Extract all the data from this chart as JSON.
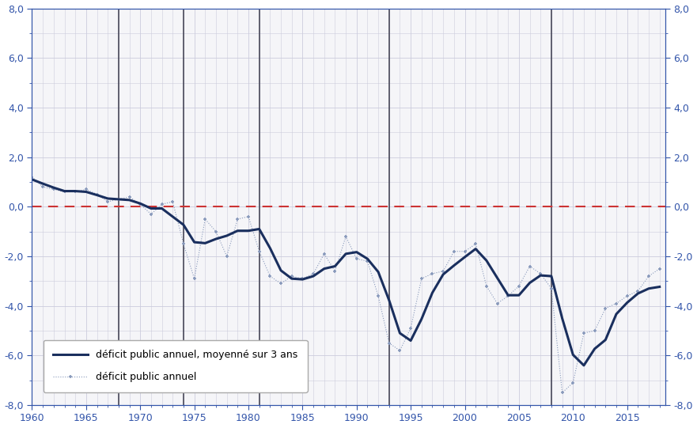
{
  "background_color": "#ffffff",
  "plot_bg_color": "#f5f5f8",
  "grid_color": "#ccccdd",
  "xlim": [
    1960,
    2018.5
  ],
  "ylim": [
    -8.0,
    8.0
  ],
  "yticks": [
    -8.0,
    -6.0,
    -4.0,
    -2.0,
    0.0,
    2.0,
    4.0,
    6.0,
    8.0
  ],
  "xticks": [
    1960,
    1965,
    1970,
    1975,
    1980,
    1985,
    1990,
    1995,
    2000,
    2005,
    2010,
    2015
  ],
  "vertical_lines": [
    1968,
    1974,
    1981,
    1993,
    2008
  ],
  "vline_color": "#444455",
  "zero_line_color": "#cc3333",
  "tick_color": "#3355aa",
  "annual_data": {
    "years": [
      1960,
      1961,
      1962,
      1963,
      1964,
      1965,
      1966,
      1967,
      1968,
      1969,
      1970,
      1971,
      1972,
      1973,
      1974,
      1975,
      1976,
      1977,
      1978,
      1979,
      1980,
      1981,
      1982,
      1983,
      1984,
      1985,
      1986,
      1987,
      1988,
      1989,
      1990,
      1991,
      1992,
      1993,
      1994,
      1995,
      1996,
      1997,
      1998,
      1999,
      2000,
      2001,
      2002,
      2003,
      2004,
      2005,
      2006,
      2007,
      2008,
      2009,
      2010,
      2011,
      2012,
      2013,
      2014,
      2015,
      2016,
      2017,
      2018
    ],
    "values": [
      1.2,
      0.8,
      0.7,
      0.6,
      0.6,
      0.7,
      0.5,
      0.2,
      0.3,
      0.4,
      0.1,
      -0.3,
      0.1,
      0.2,
      -1.5,
      -2.9,
      -0.5,
      -1.0,
      -2.0,
      -0.5,
      -0.4,
      -1.8,
      -2.8,
      -3.1,
      -2.8,
      -2.9,
      -2.7,
      -1.9,
      -2.6,
      -1.2,
      -2.1,
      -2.2,
      -3.6,
      -5.5,
      -5.8,
      -4.9,
      -2.9,
      -2.7,
      -2.6,
      -1.8,
      -1.8,
      -1.5,
      -3.2,
      -3.9,
      -3.6,
      -3.2,
      -2.4,
      -2.7,
      -3.3,
      -7.5,
      -7.1,
      -5.1,
      -5.0,
      -4.1,
      -3.9,
      -3.6,
      -3.4,
      -2.8,
      -2.5
    ],
    "color": "#8899bb",
    "linewidth": 0.8,
    "markersize": 3.5
  },
  "smoothed_data": {
    "years": [
      1960,
      1961,
      1962,
      1963,
      1964,
      1965,
      1966,
      1967,
      1968,
      1969,
      1970,
      1971,
      1972,
      1973,
      1974,
      1975,
      1976,
      1977,
      1978,
      1979,
      1980,
      1981,
      1982,
      1983,
      1984,
      1985,
      1986,
      1987,
      1988,
      1989,
      1990,
      1991,
      1992,
      1993,
      1994,
      1995,
      1996,
      1997,
      1998,
      1999,
      2000,
      2001,
      2002,
      2003,
      2004,
      2005,
      2006,
      2007,
      2008,
      2009,
      2010,
      2011,
      2012,
      2013,
      2014,
      2015,
      2016,
      2017,
      2018
    ],
    "values": [
      1.1,
      0.93,
      0.77,
      0.63,
      0.63,
      0.6,
      0.47,
      0.33,
      0.3,
      0.27,
      0.13,
      -0.07,
      -0.07,
      -0.4,
      -0.73,
      -1.43,
      -1.47,
      -1.3,
      -1.17,
      -0.97,
      -0.97,
      -0.9,
      -1.67,
      -2.57,
      -2.9,
      -2.93,
      -2.8,
      -2.5,
      -2.4,
      -1.9,
      -1.83,
      -2.1,
      -2.63,
      -3.77,
      -5.1,
      -5.4,
      -4.53,
      -3.47,
      -2.73,
      -2.37,
      -2.03,
      -1.7,
      -2.17,
      -2.87,
      -3.57,
      -3.57,
      -3.07,
      -2.77,
      -2.8,
      -4.5,
      -5.97,
      -6.4,
      -5.73,
      -5.37,
      -4.33,
      -3.87,
      -3.5,
      -3.3,
      -3.23
    ],
    "color": "#1a2f5e",
    "linewidth": 2.2
  },
  "legend_labels": [
    "déficit public annuel, moyenné sur 3 ans",
    "déficit public annuel"
  ]
}
